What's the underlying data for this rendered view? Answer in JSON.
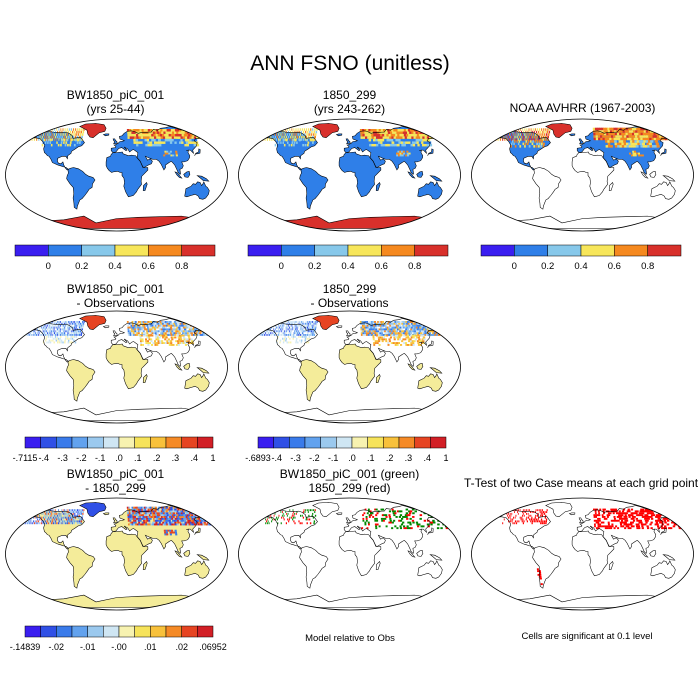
{
  "title": "ANN FSNO (unitless)",
  "colors": {
    "colorbar_6": [
      "#3a1ef0",
      "#2f7fe8",
      "#87c8ea",
      "#f7e65a",
      "#f5891f",
      "#d8302b"
    ],
    "colorbar_12": [
      "#3a1ef0",
      "#3050e6",
      "#3a7bea",
      "#62a2ee",
      "#9bc9ee",
      "#cfe6f3",
      "#f7f2b0",
      "#f6e35a",
      "#f8c13b",
      "#f58a26",
      "#e64422",
      "#d21f26"
    ],
    "land": "#ffffff",
    "model_diff": "#ff0000",
    "model_base": "#008800"
  },
  "chart_data": [
    {
      "type": "heatmap",
      "title": "BW1850_piC_001",
      "subtitle": "(yrs 25-44)",
      "colorbar_ticks": [
        "0",
        "0.2",
        "0.4",
        "0.6",
        "0.8"
      ],
      "colorbar_levels": [
        0.0,
        0.2,
        0.4,
        0.6,
        0.8
      ],
      "legend": "bottom"
    },
    {
      "type": "heatmap",
      "title": "1850_299",
      "subtitle": "(yrs 243-262)",
      "colorbar_ticks": [
        "0",
        "0.2",
        "0.4",
        "0.6",
        "0.8"
      ],
      "colorbar_levels": [
        0.0,
        0.2,
        0.4,
        0.6,
        0.8
      ],
      "legend": "bottom"
    },
    {
      "type": "heatmap",
      "title": "NOAA AVHRR (1967-2003)",
      "subtitle": "",
      "colorbar_ticks": [
        "0",
        "0.2",
        "0.4",
        "0.6",
        "0.8"
      ],
      "colorbar_levels": [
        0.0,
        0.2,
        0.4,
        0.6,
        0.8
      ],
      "legend": "bottom"
    },
    {
      "type": "heatmap",
      "title": "BW1850_piC_001",
      "subtitle": "- Observations",
      "colorbar_ticks": [
        "-.7115",
        "-.4",
        "-.3",
        "-.2",
        "-.1",
        ".0",
        ".1",
        ".2",
        ".3",
        ".4",
        "1"
      ],
      "colorbar_levels": [
        -0.7115,
        -0.4,
        -0.3,
        -0.2,
        -0.1,
        0.0,
        0.1,
        0.2,
        0.3,
        0.4,
        1
      ],
      "legend": "bottom"
    },
    {
      "type": "heatmap",
      "title": "1850_299",
      "subtitle": "- Observations",
      "colorbar_ticks": [
        "-.6893",
        "-.4",
        "-.3",
        "-.2",
        "-.1",
        ".0",
        ".1",
        ".2",
        ".3",
        ".4",
        "1"
      ],
      "colorbar_levels": [
        -0.6893,
        -0.4,
        -0.3,
        -0.2,
        -0.1,
        0.0,
        0.1,
        0.2,
        0.3,
        0.4,
        1
      ],
      "legend": "bottom"
    },
    {
      "type": "heatmap",
      "title": "BW1850_piC_001",
      "subtitle": "- 1850_299",
      "colorbar_ticks": [
        "-.14839",
        "-.02",
        "-.01",
        "-.00",
        ".01",
        ".02",
        ".06952"
      ],
      "colorbar_levels": [
        -0.14839,
        -0.02,
        -0.01,
        -0.0,
        0.01,
        0.02,
        0.06952
      ],
      "legend": "bottom"
    },
    {
      "type": "scatter",
      "title": "BW1850_piC_001 (green)",
      "subtitle": "1850_299 (red)",
      "caption": "Model relative to Obs"
    },
    {
      "type": "scatter",
      "title": "T-Test of two Case means at each grid point",
      "subtitle": "",
      "caption": "Cells are significant at 0.1 level"
    }
  ]
}
